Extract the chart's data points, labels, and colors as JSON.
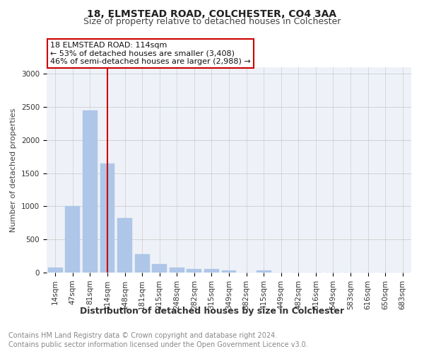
{
  "title": "18, ELMSTEAD ROAD, COLCHESTER, CO4 3AA",
  "subtitle": "Size of property relative to detached houses in Colchester",
  "xlabel": "Distribution of detached houses by size in Colchester",
  "ylabel": "Number of detached properties",
  "footnote1": "Contains HM Land Registry data © Crown copyright and database right 2024.",
  "footnote2": "Contains public sector information licensed under the Open Government Licence v3.0.",
  "annotation_line1": "18 ELMSTEAD ROAD: 114sqm",
  "annotation_line2": "← 53% of detached houses are smaller (3,408)",
  "annotation_line3": "46% of semi-detached houses are larger (2,988) →",
  "bins": [
    "14sqm",
    "47sqm",
    "81sqm",
    "114sqm",
    "148sqm",
    "181sqm",
    "215sqm",
    "248sqm",
    "282sqm",
    "315sqm",
    "349sqm",
    "382sqm",
    "415sqm",
    "449sqm",
    "482sqm",
    "516sqm",
    "549sqm",
    "583sqm",
    "616sqm",
    "650sqm",
    "683sqm"
  ],
  "values": [
    75,
    1000,
    2450,
    1650,
    825,
    275,
    125,
    75,
    50,
    50,
    30,
    5,
    30,
    5,
    0,
    0,
    0,
    0,
    0,
    0,
    0
  ],
  "bar_color": "#aec6e8",
  "bar_edge_color": "#aec6e8",
  "vline_x_index": 3,
  "vline_color": "#cc0000",
  "annotation_box_color": "#cc0000",
  "grid_color": "#cccccc",
  "ylim": [
    0,
    3100
  ],
  "yticks": [
    0,
    500,
    1000,
    1500,
    2000,
    2500,
    3000
  ],
  "background_color": "#eef2f8",
  "fig_bg_color": "#ffffff",
  "title_fontsize": 10,
  "subtitle_fontsize": 9,
  "xlabel_fontsize": 9,
  "ylabel_fontsize": 8,
  "tick_fontsize": 7.5,
  "annotation_fontsize": 8,
  "footnote_fontsize": 7
}
